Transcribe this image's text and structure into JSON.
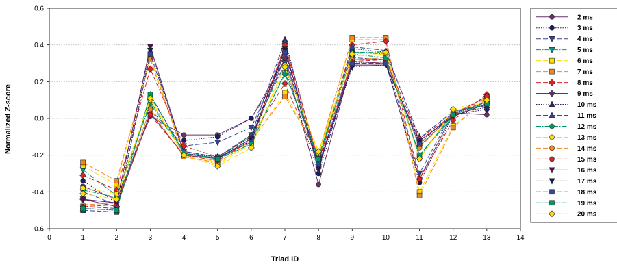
{
  "chart_data": {
    "type": "line",
    "xlabel": "Triad ID",
    "ylabel": "Normalized Z-score",
    "xlim": [
      0,
      14
    ],
    "ylim": [
      -0.6,
      0.6
    ],
    "xticks": [
      0,
      1,
      2,
      3,
      4,
      5,
      6,
      7,
      8,
      9,
      10,
      11,
      12,
      13,
      14
    ],
    "yticks": [
      -0.6,
      -0.4,
      -0.2,
      0.0,
      0.2,
      0.4,
      0.6
    ],
    "ytick_labels": [
      "-0.6",
      "-0.4",
      "-0.2",
      "0.0",
      "0.2",
      "0.4",
      "0.6"
    ],
    "grid": "horizontal",
    "legend_position": "right",
    "x": [
      1,
      2,
      3,
      4,
      5,
      6,
      7,
      8,
      9,
      10,
      11,
      12,
      13
    ],
    "series": [
      {
        "name": "2 ms",
        "color": "#663366",
        "marker": "circle",
        "dash": "solid",
        "values": [
          -0.37,
          -0.44,
          0.01,
          -0.09,
          -0.09,
          0.0,
          0.32,
          -0.36,
          0.31,
          0.3,
          -0.33,
          0.03,
          0.02
        ]
      },
      {
        "name": "3 ms",
        "color": "#1a1a66",
        "marker": "circle",
        "dash": "dot",
        "values": [
          -0.34,
          -0.46,
          0.02,
          -0.12,
          -0.1,
          0.0,
          0.28,
          -0.3,
          0.3,
          0.31,
          -0.35,
          0.02,
          0.05
        ]
      },
      {
        "name": "4 ms",
        "color": "#334499",
        "marker": "triangle-down",
        "dash": "dash",
        "values": [
          -0.4,
          -0.47,
          0.05,
          -0.15,
          -0.13,
          -0.05,
          0.35,
          -0.28,
          0.33,
          0.32,
          -0.3,
          0.04,
          0.07
        ]
      },
      {
        "name": "5 ms",
        "color": "#009988",
        "marker": "triangle-down",
        "dash": "dashdot",
        "values": [
          -0.28,
          -0.42,
          0.09,
          -0.18,
          -0.22,
          -0.09,
          0.3,
          -0.22,
          0.36,
          0.35,
          -0.2,
          0.01,
          0.09
        ]
      },
      {
        "name": "6 ms",
        "color": "#ffdd00",
        "marker": "square",
        "dash": "dash",
        "values": [
          -0.26,
          -0.36,
          0.33,
          -0.19,
          -0.24,
          -0.13,
          0.14,
          -0.2,
          0.43,
          0.43,
          -0.4,
          -0.04,
          0.1
        ]
      },
      {
        "name": "7 ms",
        "color": "#ee8822",
        "marker": "square",
        "dash": "dash",
        "values": [
          -0.24,
          -0.34,
          0.32,
          -0.2,
          -0.23,
          -0.12,
          0.12,
          -0.19,
          0.44,
          0.44,
          -0.42,
          -0.05,
          0.11
        ]
      },
      {
        "name": "8 ms",
        "color": "#dd2222",
        "marker": "diamond",
        "dash": "dash",
        "values": [
          -0.31,
          -0.39,
          0.27,
          -0.15,
          -0.21,
          -0.1,
          0.19,
          -0.23,
          0.4,
          0.42,
          -0.33,
          -0.01,
          0.13
        ]
      },
      {
        "name": "9 ms",
        "color": "#663366",
        "marker": "diamond",
        "dash": "solid",
        "values": [
          -0.44,
          -0.48,
          0.03,
          -0.2,
          -0.22,
          -0.11,
          0.33,
          -0.27,
          0.32,
          0.32,
          -0.15,
          0.02,
          0.12
        ]
      },
      {
        "name": "10 ms",
        "color": "#2a2a66",
        "marker": "triangle-up",
        "dash": "dot",
        "values": [
          -0.49,
          -0.5,
          0.13,
          -0.19,
          -0.21,
          -0.1,
          0.43,
          -0.25,
          0.38,
          0.36,
          -0.1,
          0.03,
          0.06
        ]
      },
      {
        "name": "11 ms",
        "color": "#334499",
        "marker": "triangle-up",
        "dash": "dash",
        "values": [
          -0.48,
          -0.49,
          0.12,
          -0.18,
          -0.21,
          -0.09,
          0.42,
          -0.24,
          0.39,
          0.37,
          -0.11,
          0.04,
          0.07
        ]
      },
      {
        "name": "12 ms",
        "color": "#009966",
        "marker": "circle",
        "dash": "dashdot",
        "values": [
          -0.39,
          -0.43,
          0.08,
          -0.19,
          -0.22,
          -0.12,
          0.24,
          -0.21,
          0.36,
          0.36,
          -0.21,
          0.03,
          0.08
        ]
      },
      {
        "name": "13 ms",
        "color": "#ffdd00",
        "marker": "circle",
        "dash": "dash",
        "values": [
          -0.38,
          -0.41,
          0.1,
          -0.2,
          -0.25,
          -0.14,
          0.29,
          -0.19,
          0.34,
          0.35,
          -0.22,
          0.04,
          0.09
        ]
      },
      {
        "name": "14 ms",
        "color": "#ee8822",
        "marker": "circle",
        "dash": "dash",
        "values": [
          -0.47,
          -0.46,
          0.05,
          -0.21,
          -0.24,
          -0.13,
          0.39,
          -0.22,
          0.32,
          0.33,
          -0.16,
          0.03,
          0.11
        ]
      },
      {
        "name": "15 ms",
        "color": "#dd2222",
        "marker": "circle",
        "dash": "dash",
        "values": [
          -0.48,
          -0.47,
          0.02,
          -0.2,
          -0.23,
          -0.12,
          0.4,
          -0.23,
          0.31,
          0.32,
          -0.11,
          0.02,
          0.12
        ]
      },
      {
        "name": "16 ms",
        "color": "#551155",
        "marker": "triangle-down",
        "dash": "solid",
        "values": [
          -0.44,
          -0.46,
          0.39,
          -0.19,
          -0.22,
          -0.11,
          0.38,
          -0.26,
          0.29,
          0.29,
          -0.12,
          0.01,
          0.08
        ]
      },
      {
        "name": "17 ms",
        "color": "#1a1a55",
        "marker": "triangle-down",
        "dash": "dot",
        "values": [
          -0.49,
          -0.5,
          0.37,
          -0.19,
          -0.22,
          -0.12,
          0.37,
          -0.27,
          0.28,
          0.29,
          -0.13,
          0.02,
          0.09
        ]
      },
      {
        "name": "18 ms",
        "color": "#334499",
        "marker": "square",
        "dash": "dash",
        "values": [
          -0.5,
          -0.51,
          0.35,
          -0.18,
          -0.21,
          -0.13,
          0.36,
          -0.25,
          0.3,
          0.3,
          -0.14,
          0.03,
          0.09
        ]
      },
      {
        "name": "19 ms",
        "color": "#009966",
        "marker": "square",
        "dash": "dashdot",
        "values": [
          -0.49,
          -0.5,
          0.13,
          -0.19,
          -0.22,
          -0.14,
          0.25,
          -0.22,
          0.35,
          0.33,
          -0.2,
          0.02,
          0.08
        ]
      },
      {
        "name": "20 ms",
        "color": "#ffdd00",
        "marker": "diamond",
        "dash": "dash",
        "values": [
          -0.41,
          -0.44,
          0.11,
          -0.2,
          -0.26,
          -0.16,
          0.28,
          -0.18,
          0.35,
          0.36,
          -0.22,
          0.05,
          0.1
        ]
      }
    ]
  }
}
